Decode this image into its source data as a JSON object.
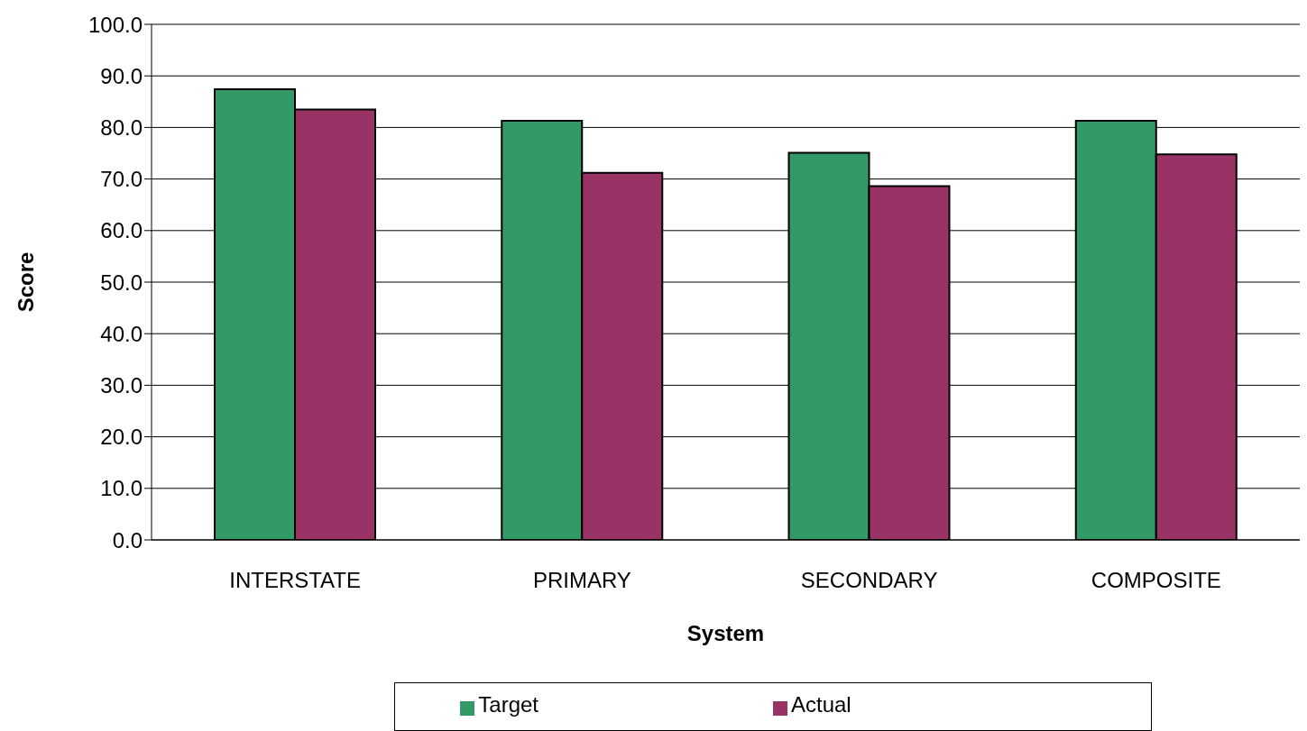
{
  "chart_data": {
    "type": "bar",
    "xlabel": "System",
    "ylabel": "Score",
    "categories": [
      "INTERSTATE",
      "PRIMARY",
      "SECONDARY",
      "COMPOSITE"
    ],
    "series": [
      {
        "name": "Target",
        "color": "#339966",
        "values": [
          87.4,
          81.3,
          75.1,
          81.3
        ]
      },
      {
        "name": "Actual",
        "color": "#993366",
        "values": [
          83.5,
          71.2,
          68.6,
          74.8
        ]
      }
    ],
    "ylim": [
      0,
      100
    ],
    "yticks": [
      {
        "value": 0,
        "label": "0.0"
      },
      {
        "value": 10,
        "label": "10.0"
      },
      {
        "value": 20,
        "label": "20.0"
      },
      {
        "value": 30,
        "label": "30.0"
      },
      {
        "value": 40,
        "label": "40.0"
      },
      {
        "value": 50,
        "label": "50.0"
      },
      {
        "value": 60,
        "label": "60.0"
      },
      {
        "value": 70,
        "label": "70.0"
      },
      {
        "value": 80,
        "label": "80.0"
      },
      {
        "value": 90,
        "label": "90.0"
      },
      {
        "value": 100,
        "label": "100.0"
      }
    ],
    "grid": "y",
    "legend": "bottom"
  }
}
